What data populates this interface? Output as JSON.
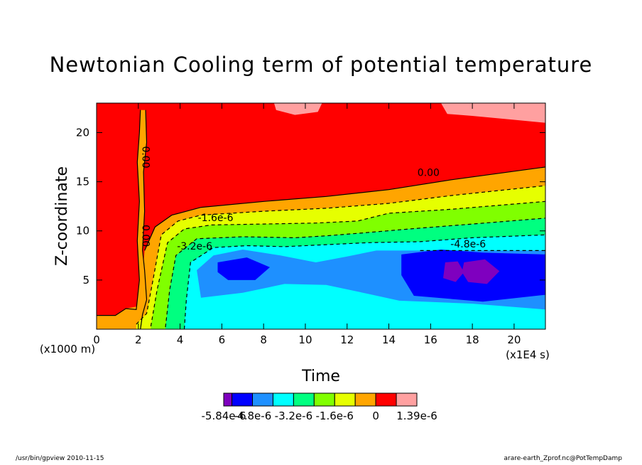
{
  "title": "Newtonian Cooling term of potential temperature",
  "chart_data": {
    "type": "heatmap",
    "title": "Newtonian Cooling term of potential temperature",
    "xlabel": "Time",
    "ylabel": "Z-coordinate",
    "x_unit": "(x1E4 s)",
    "y_unit": "(x1000 m)",
    "xlim": [
      0,
      21.5
    ],
    "ylim": [
      0,
      23
    ],
    "x_ticks": [
      0,
      2,
      4,
      6,
      8,
      10,
      12,
      14,
      16,
      18,
      20
    ],
    "y_ticks": [
      5,
      10,
      15,
      20
    ],
    "x_tick_labels": [
      "0",
      "2",
      "4",
      "6",
      "8",
      "10",
      "12",
      "14",
      "16",
      "18",
      "20"
    ],
    "y_tick_labels": [
      "5",
      "10",
      "15",
      "20"
    ],
    "contour_levels": [
      -5.6e-06,
      -4.8e-06,
      -4e-06,
      -3.2e-06,
      -2.4e-06,
      -1.6e-06,
      -8e-07,
      0,
      8e-07
    ],
    "contour_labels": [
      {
        "text": "0.00",
        "x": 15.9,
        "y": 15.6
      },
      {
        "text": "-1.6e-6",
        "x": 5.7,
        "y": 11.0
      },
      {
        "text": "-3.2e-6",
        "x": 4.7,
        "y": 8.1
      },
      {
        "text": "-4.8e-6",
        "x": 17.8,
        "y": 8.3
      },
      {
        "text": "0.00",
        "x": 2.2,
        "y": 17.5
      },
      {
        "text": "0.00",
        "x": 2.2,
        "y": 9.5
      }
    ],
    "colorbar": {
      "colors": [
        "#7f00bf",
        "#0000ff",
        "#1e90ff",
        "#00ffff",
        "#00ff80",
        "#80ff00",
        "#e6ff00",
        "#ffa500",
        "#ff0000",
        "#ffa0a0"
      ],
      "labels": [
        "-5.84e-6",
        "-4.8e-6",
        "-3.2e-6",
        "-1.6e-6",
        "0",
        "1.39e-6"
      ]
    }
  },
  "footer": {
    "left": "/usr/bin/gpview  2010-11-15",
    "right": "arare-earth_Zprof.nc@PotTempDamp"
  }
}
